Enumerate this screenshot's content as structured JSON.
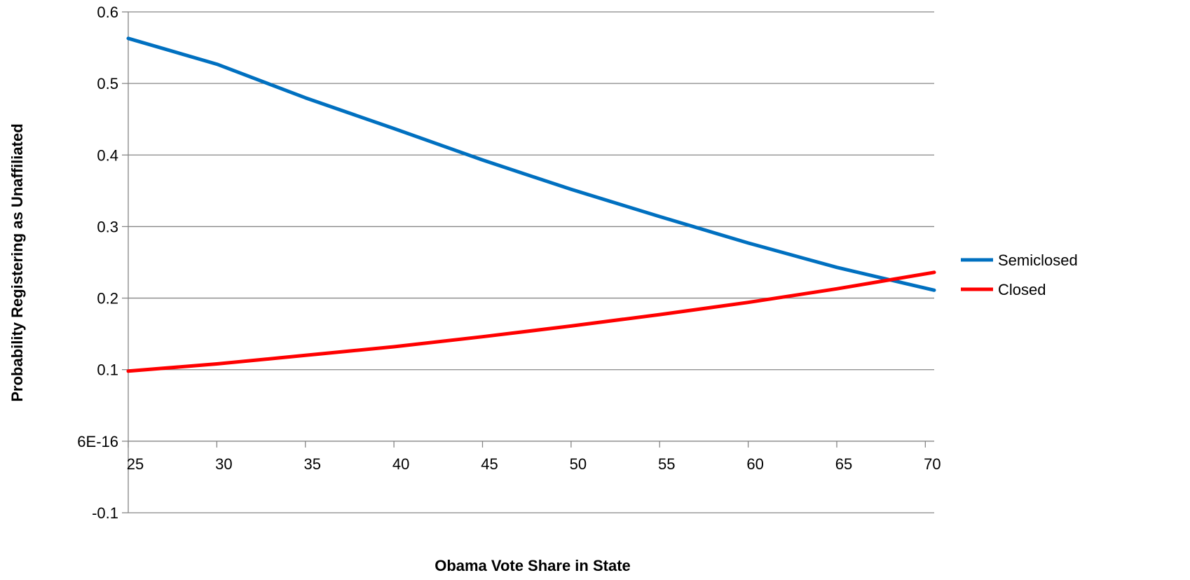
{
  "chart_data": {
    "type": "line",
    "xlabel": "Obama Vote Share in State",
    "ylabel": "Probability Registering as Unaffiliated",
    "xlim": [
      25,
      70.5
    ],
    "ylim": [
      -0.1,
      0.6
    ],
    "x_ticks": [
      25,
      30,
      35,
      40,
      45,
      50,
      55,
      60,
      65,
      70
    ],
    "x_tick_labels": [
      "25",
      "30",
      "35",
      "40",
      "45",
      "50",
      "55",
      "60",
      "65",
      "70"
    ],
    "y_ticks": [
      0.6,
      0.5,
      0.4,
      0.3,
      0.2,
      0.1,
      0,
      -0.1
    ],
    "y_tick_labels": [
      "0.6",
      "0.5",
      "0.4",
      "0.3",
      "0.2",
      "0.1",
      "6E-16",
      "-0.1"
    ],
    "grid": true,
    "x_axis_crosses_at": 0,
    "legend_position": "right",
    "series": [
      {
        "name": "Semiclosed",
        "color": "#0070c0",
        "x": [
          25,
          30,
          35,
          40,
          45,
          50,
          55,
          60,
          65,
          70.5
        ],
        "values": [
          0.563,
          0.527,
          0.48,
          0.437,
          0.393,
          0.352,
          0.314,
          0.277,
          0.243,
          0.211
        ]
      },
      {
        "name": "Closed",
        "color": "#ff0000",
        "x": [
          25,
          30,
          35,
          40,
          45,
          50,
          55,
          60,
          65,
          70.5
        ],
        "values": [
          0.098,
          0.108,
          0.12,
          0.132,
          0.146,
          0.161,
          0.177,
          0.194,
          0.213,
          0.236
        ]
      }
    ]
  }
}
